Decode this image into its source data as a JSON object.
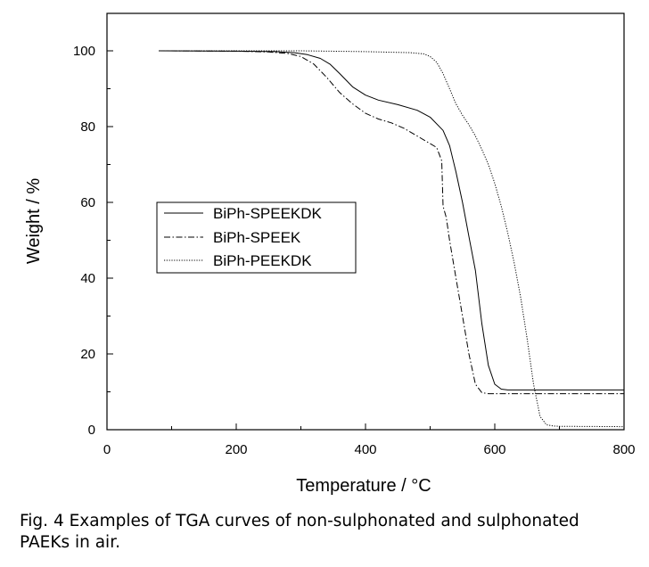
{
  "chart_data": {
    "type": "line",
    "title": "",
    "xlabel": "Temperature / °C",
    "ylabel": "Weight / %",
    "xlim": [
      0,
      800
    ],
    "ylim": [
      0,
      100
    ],
    "xticks": [
      0,
      200,
      400,
      600,
      800
    ],
    "yticks": [
      0,
      20,
      40,
      60,
      80,
      100
    ],
    "grid": false,
    "legend_position": "left-middle",
    "series": [
      {
        "name": "BiPh-SPEEKDK",
        "style": "solid",
        "x": [
          80,
          200,
          260,
          290,
          310,
          330,
          345,
          360,
          380,
          400,
          420,
          450,
          480,
          500,
          520,
          530,
          540,
          550,
          560,
          570,
          580,
          590,
          600,
          610,
          620,
          700,
          800
        ],
        "y": [
          100,
          99.9,
          99.8,
          99.5,
          99,
          98,
          96.5,
          94,
          90.5,
          88.3,
          87,
          85.8,
          84.3,
          82.5,
          79,
          75,
          68,
          60,
          51,
          42,
          28,
          17,
          12,
          10.7,
          10.5,
          10.5,
          10.5
        ]
      },
      {
        "name": "BiPh-SPEEK",
        "style": "dash-dot",
        "x": [
          80,
          200,
          250,
          280,
          300,
          320,
          340,
          360,
          380,
          400,
          420,
          440,
          460,
          480,
          500,
          510,
          518,
          520,
          525,
          530,
          540,
          550,
          560,
          570,
          580,
          590,
          600,
          700,
          800
        ],
        "y": [
          100,
          99.9,
          99.7,
          99.3,
          98.5,
          96.5,
          93,
          89,
          86,
          83.5,
          82,
          81,
          79.5,
          77.5,
          75.5,
          74.5,
          71,
          59,
          56,
          50,
          40,
          30,
          20,
          12,
          9.8,
          9.5,
          9.5,
          9.5,
          9.5
        ]
      },
      {
        "name": "BiPh-PEEKDK",
        "style": "dotted",
        "x": [
          80,
          200,
          300,
          400,
          470,
          490,
          500,
          510,
          520,
          530,
          540,
          550,
          560,
          570,
          580,
          590,
          600,
          610,
          620,
          630,
          640,
          650,
          660,
          670,
          680,
          690,
          700,
          800
        ],
        "y": [
          100,
          100,
          100,
          99.8,
          99.5,
          99.2,
          98.5,
          97,
          94,
          90,
          86,
          83,
          80.5,
          77.5,
          74,
          70,
          65,
          59,
          52,
          44,
          35,
          24,
          12,
          3.5,
          1.3,
          1.0,
          0.9,
          0.8
        ]
      }
    ]
  },
  "caption": {
    "line1": "Fig. 4 Examples of TGA curves of non-sulphonated and sulphonated",
    "line2": "PAEKs in air."
  }
}
